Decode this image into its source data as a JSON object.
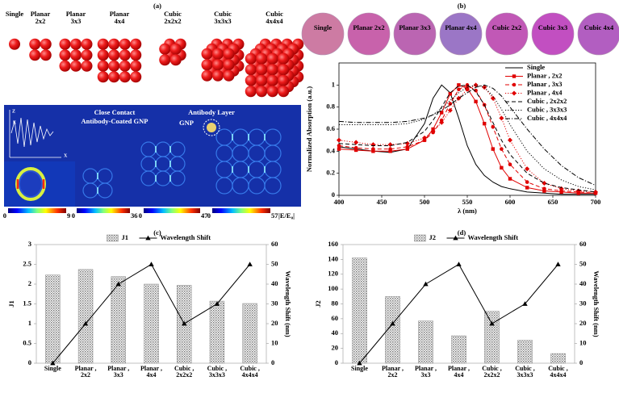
{
  "panel_labels": [
    "(a)",
    "(b)",
    "(c)",
    "(d)"
  ],
  "panel_a": {
    "groups": [
      "Single",
      "Planar 2x2",
      "Planar 3x3",
      "Planar 4x4",
      "Cubic 2x2x2",
      "Cubic 3x3x3",
      "Cubic 4x4x4"
    ],
    "annotations": [
      "Close Contact",
      "Antibody-Coated GNP",
      "Antibody Layer",
      "GNP"
    ],
    "inset_axes": [
      "Z",
      "E",
      "X"
    ],
    "colorbars": [
      {
        "min": 0,
        "max": 9
      },
      {
        "min": 0,
        "max": 36
      },
      {
        "min": 0,
        "max": 47
      },
      {
        "min": 0,
        "max": 57
      }
    ],
    "colorbar_label": "|E/E₀|"
  },
  "panel_b_samples": [
    {
      "label": "Single",
      "color": "#cd7ba3"
    },
    {
      "label": "Planar 2x2",
      "color": "#c862ab"
    },
    {
      "label": "Planar 3x3",
      "color": "#bb65b2"
    },
    {
      "label": "Planar 4x4",
      "color": "#9b76c6"
    },
    {
      "label": "Cubic 2x2",
      "color": "#c158b6"
    },
    {
      "label": "Cubic 3x3",
      "color": "#c24fc1"
    },
    {
      "label": "Cubic 4x4",
      "color": "#b25ec1"
    }
  ],
  "chart_data": [
    {
      "type": "line",
      "xlabel": "λ (nm)",
      "ylabel": "Normalized Absorption (a.u.)",
      "xlim": [
        400,
        700
      ],
      "xticks": [
        400,
        450,
        500,
        550,
        600,
        650,
        700
      ],
      "ylim": [
        0,
        1.2
      ],
      "yticks": [
        0,
        0.2,
        0.4,
        0.6,
        0.8,
        1
      ],
      "legend": "top-right",
      "x": [
        400,
        420,
        440,
        460,
        480,
        500,
        510,
        520,
        530,
        540,
        550,
        560,
        570,
        580,
        590,
        600,
        620,
        640,
        660,
        680,
        700
      ],
      "series": [
        {
          "name": "Single",
          "color": "#000000",
          "linestyle": "solid",
          "marker": null,
          "values": [
            0.44,
            0.42,
            0.4,
            0.39,
            0.42,
            0.65,
            0.88,
            1.0,
            0.93,
            0.7,
            0.45,
            0.28,
            0.18,
            0.12,
            0.08,
            0.06,
            0.03,
            0.02,
            0.01,
            0.01,
            0.01
          ]
        },
        {
          "name": "Planar , 2x2",
          "color": "#e00000",
          "linestyle": "solid",
          "marker": "square",
          "values": [
            0.42,
            0.41,
            0.4,
            0.4,
            0.42,
            0.5,
            0.6,
            0.75,
            0.92,
            1.0,
            0.97,
            0.85,
            0.65,
            0.42,
            0.25,
            0.15,
            0.07,
            0.04,
            0.03,
            0.02,
            0.02
          ]
        },
        {
          "name": "Planar , 3x3",
          "color": "#e00000",
          "linestyle": "dashed",
          "marker": "circle",
          "values": [
            0.45,
            0.43,
            0.42,
            0.42,
            0.44,
            0.5,
            0.57,
            0.68,
            0.83,
            0.96,
            1.0,
            0.95,
            0.82,
            0.62,
            0.42,
            0.28,
            0.12,
            0.06,
            0.04,
            0.03,
            0.02
          ]
        },
        {
          "name": "Planar , 4x4",
          "color": "#e00000",
          "linestyle": "dotted",
          "marker": "diamond",
          "values": [
            0.5,
            0.48,
            0.46,
            0.46,
            0.47,
            0.52,
            0.58,
            0.66,
            0.77,
            0.88,
            0.96,
            1.0,
            0.98,
            0.88,
            0.7,
            0.5,
            0.24,
            0.11,
            0.06,
            0.04,
            0.03
          ]
        },
        {
          "name": "Cubic , 2x2x2",
          "color": "#000000",
          "linestyle": "dashed",
          "marker": null,
          "values": [
            0.47,
            0.46,
            0.45,
            0.45,
            0.48,
            0.58,
            0.68,
            0.8,
            0.93,
            0.99,
            1.0,
            0.94,
            0.82,
            0.66,
            0.5,
            0.37,
            0.2,
            0.11,
            0.07,
            0.05,
            0.03
          ]
        },
        {
          "name": "Cubic , 3x3x3",
          "color": "#000000",
          "linestyle": "dotted",
          "marker": null,
          "values": [
            0.64,
            0.64,
            0.64,
            0.64,
            0.65,
            0.69,
            0.73,
            0.79,
            0.86,
            0.93,
            0.98,
            1.0,
            0.98,
            0.9,
            0.78,
            0.64,
            0.4,
            0.24,
            0.14,
            0.08,
            0.05
          ]
        },
        {
          "name": "Cubic , 4x4x4",
          "color": "#000000",
          "linestyle": "dashdot",
          "marker": null,
          "values": [
            0.67,
            0.66,
            0.66,
            0.66,
            0.67,
            0.7,
            0.73,
            0.77,
            0.82,
            0.88,
            0.93,
            0.98,
            1.0,
            0.97,
            0.9,
            0.8,
            0.6,
            0.42,
            0.27,
            0.16,
            0.09
          ]
        }
      ]
    },
    {
      "type": "bar",
      "ylabel": "J1",
      "y2label": "Wavelength Shift (nm)",
      "legend": "top",
      "categories": [
        "Single",
        "Planar , 2x2",
        "Planar , 3x3",
        "Planar , 4x4",
        "Cubic , 2x2x2",
        "Cubic , 3x3x3",
        "Cubic , 4x4x4"
      ],
      "ylim": [
        0,
        3
      ],
      "yticks": [
        0,
        0.5,
        1,
        1.5,
        2,
        2.5,
        3
      ],
      "y2lim": [
        0,
        60
      ],
      "y2ticks": [
        0,
        10,
        20,
        30,
        40,
        50,
        60
      ],
      "series": [
        {
          "name": "J1",
          "type": "bar",
          "values": [
            2.23,
            2.37,
            2.19,
            2.0,
            1.97,
            1.57,
            1.51
          ]
        },
        {
          "name": "Wavelength Shift",
          "type": "line",
          "axis": "y2",
          "color": "#000000",
          "values": [
            0,
            20,
            40,
            50,
            20,
            30,
            50
          ]
        }
      ]
    },
    {
      "type": "bar",
      "ylabel": "J2",
      "y2label": "Wavelength Shift (nm)",
      "legend": "top",
      "categories": [
        "Single",
        "Planar , 2x2",
        "Planar , 3x3",
        "Planar , 4x4",
        "Cubic , 2x2x2",
        "Cubic , 3x3x3",
        "Cubic , 4x4x4"
      ],
      "ylim": [
        0,
        160
      ],
      "yticks": [
        0,
        20,
        40,
        60,
        80,
        100,
        120,
        140,
        160
      ],
      "y2lim": [
        0,
        60
      ],
      "y2ticks": [
        0,
        10,
        20,
        30,
        40,
        50,
        60
      ],
      "series": [
        {
          "name": "J2",
          "type": "bar",
          "values": [
            142,
            90,
            57,
            37,
            70,
            31,
            13
          ]
        },
        {
          "name": "Wavelength Shift",
          "type": "line",
          "axis": "y2",
          "color": "#000000",
          "values": [
            0,
            20,
            40,
            50,
            20,
            30,
            50
          ]
        }
      ]
    }
  ]
}
